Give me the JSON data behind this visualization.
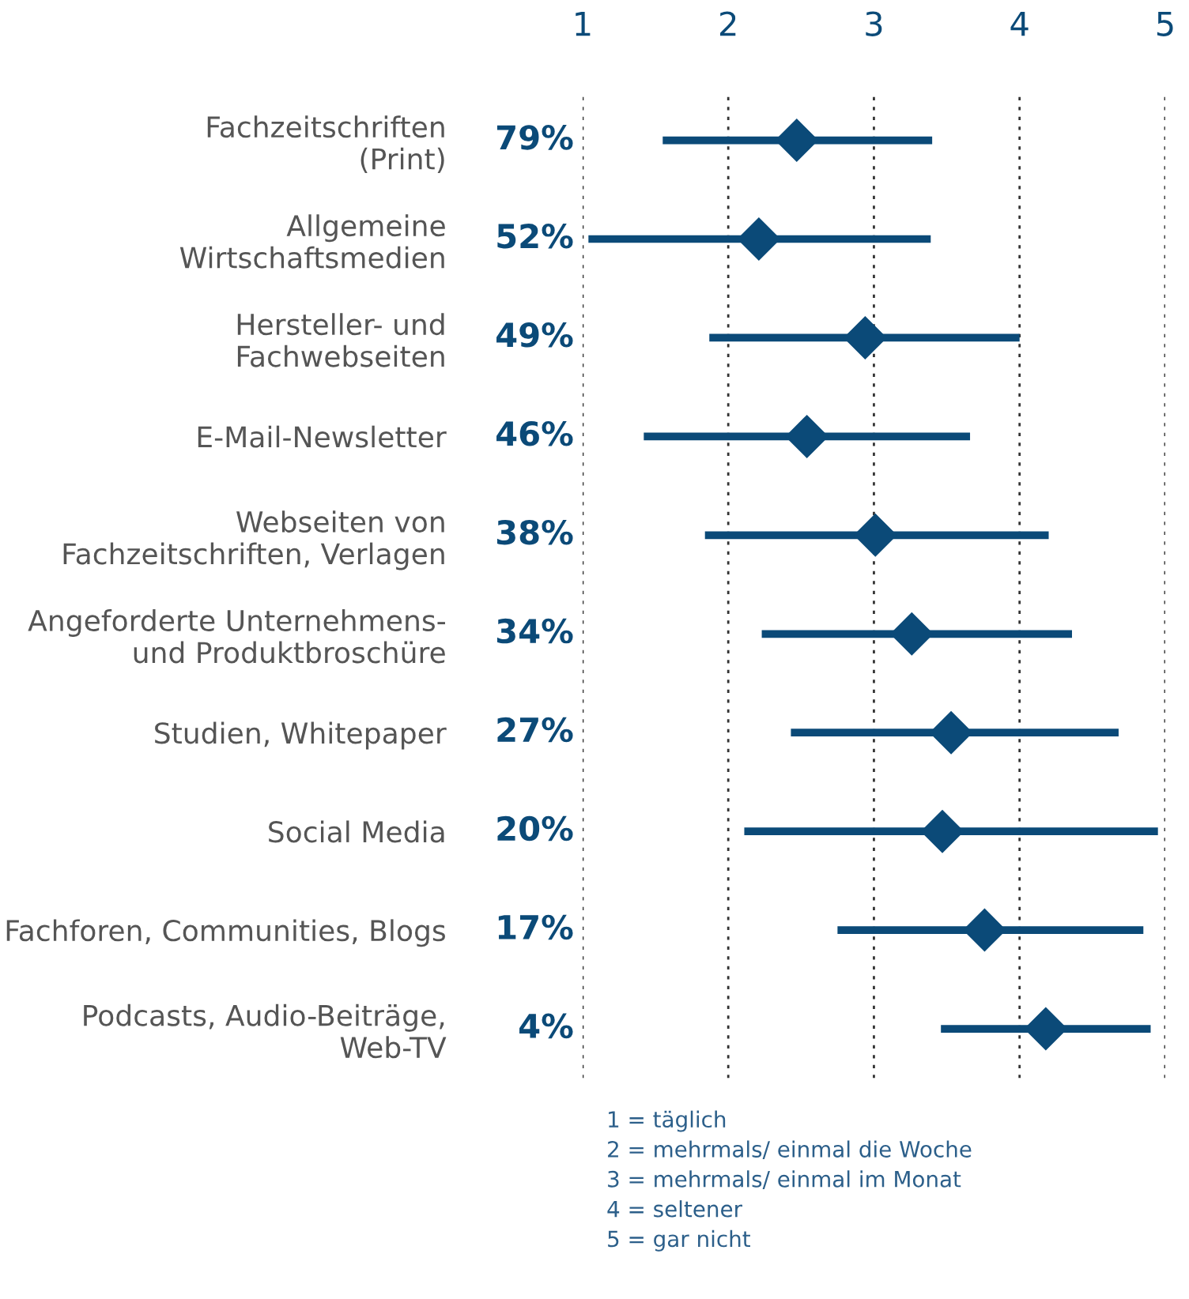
{
  "chart_data": {
    "type": "scatter",
    "orientation": "horizontal",
    "categories": [
      "Fachzeitschriften\n(Print)",
      "Allgemeine\nWirtschaftsmedien",
      "Hersteller- und\nFachwebseiten",
      "E-Mail-Newsletter",
      "Webseiten von\nFachzeitschriften, Verlagen",
      "Angeforderte Unternehmens-\nund Produktbroschüre",
      "Studien, Whitepaper",
      "Social Media",
      "Fachforen, Communities, Blogs",
      "Podcasts, Audio-Beiträge,\nWeb-TV"
    ],
    "y2_categories": [
      "79%",
      "52%",
      "49%",
      "46%",
      "38%",
      "34%",
      "27%",
      "20%",
      "17%",
      "4%"
    ],
    "values": [
      2.47,
      2.21,
      2.94,
      2.54,
      3.01,
      3.26,
      3.53,
      3.47,
      3.76,
      4.18
    ],
    "errors": [
      [
        1.55,
        3.4
      ],
      [
        1.04,
        3.39
      ],
      [
        1.87,
        4.0
      ],
      [
        1.42,
        3.66
      ],
      [
        1.84,
        4.2
      ],
      [
        2.23,
        4.36
      ],
      [
        2.43,
        4.68
      ],
      [
        2.11,
        4.95
      ],
      [
        2.75,
        4.85
      ],
      [
        3.46,
        4.9
      ]
    ],
    "color": "#0b4a78",
    "marker": "diamond",
    "xlim": [
      1,
      5
    ],
    "xticks": [
      1,
      2,
      3,
      4,
      5
    ],
    "grid": "x",
    "annotations": [
      "1 = täglich",
      "2 = mehrmals/ einmal die Woche",
      "3 = mehrmals/ einmal im Monat",
      "4 = seltener",
      "5 = gar nicht"
    ]
  }
}
